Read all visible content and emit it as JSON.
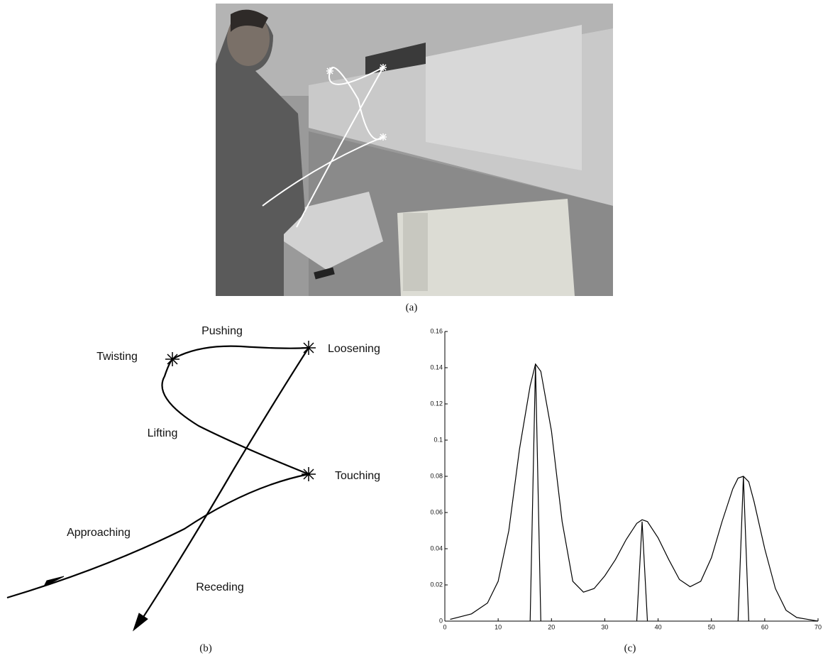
{
  "figure": {
    "photo_caption": "(a)",
    "diagram_caption": "(b)",
    "chart_caption": "(c)"
  },
  "diagram": {
    "labels": {
      "pushing": "Pushing",
      "twisting": "Twisting",
      "loosening": "Loosening",
      "lifting": "Lifting",
      "touching": "Touching",
      "approaching": "Approaching",
      "receding": "Receding"
    }
  },
  "chart_data": {
    "type": "line",
    "series": [
      {
        "color": "#000000",
        "x": [
          1,
          5,
          8,
          10,
          12,
          14,
          16,
          17,
          18,
          20,
          22,
          24,
          26,
          28,
          30,
          32,
          34,
          36,
          37,
          38,
          40,
          42,
          44,
          46,
          48,
          50,
          52,
          54,
          55,
          56,
          57,
          58,
          60,
          62,
          64,
          66,
          68,
          70
        ],
        "values": [
          0.001,
          0.004,
          0.01,
          0.022,
          0.05,
          0.095,
          0.13,
          0.142,
          0.138,
          0.105,
          0.055,
          0.022,
          0.016,
          0.018,
          0.025,
          0.034,
          0.045,
          0.054,
          0.056,
          0.055,
          0.046,
          0.034,
          0.023,
          0.019,
          0.022,
          0.035,
          0.055,
          0.073,
          0.079,
          0.08,
          0.077,
          0.066,
          0.04,
          0.018,
          0.006,
          0.002,
          0.001,
          0
        ]
      },
      {
        "color": "#000000",
        "x": [
          16,
          17,
          18
        ],
        "values": [
          0,
          0.142,
          0
        ]
      },
      {
        "color": "#000000",
        "x": [
          36,
          37,
          38
        ],
        "values": [
          0,
          0.055,
          0
        ]
      },
      {
        "color": "#000000",
        "x": [
          55,
          56,
          57
        ],
        "values": [
          0,
          0.08,
          0
        ]
      }
    ],
    "xlim": [
      0,
      70
    ],
    "ylim": [
      0,
      0.16
    ],
    "xticks": [
      0,
      10,
      20,
      30,
      40,
      50,
      60,
      70
    ],
    "yticks": [
      0,
      0.02,
      0.04,
      0.06,
      0.08,
      0.1,
      0.12,
      0.14,
      0.16
    ]
  }
}
